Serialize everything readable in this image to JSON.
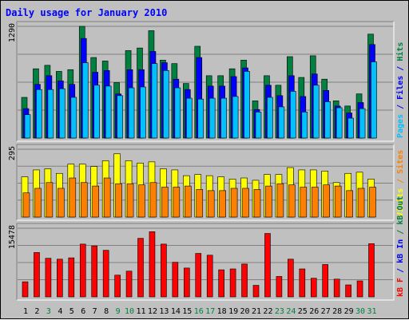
{
  "title": "Daily usage for January 2010",
  "colors": {
    "background": "#c0c0c0",
    "hits": "#008040",
    "files": "#0000ff",
    "pages": "#00c0ff",
    "visits": "#ffff00",
    "sites": "#ff8000",
    "kb_in": "#ff0000",
    "title_text": "#0000ff",
    "weekend_day": "#008040",
    "weekday_day": "#000000"
  },
  "chart_data": [
    {
      "type": "bar",
      "x": [
        "1",
        "2",
        "3",
        "4",
        "5",
        "6",
        "7",
        "8",
        "9",
        "10",
        "11",
        "12",
        "13",
        "14",
        "15",
        "16",
        "17",
        "18",
        "19",
        "20",
        "21",
        "22",
        "23",
        "24",
        "25",
        "26",
        "27",
        "28",
        "29",
        "30",
        "31"
      ],
      "weekend_days": [
        "3",
        "9",
        "10",
        "16",
        "17",
        "23",
        "24",
        "30",
        "31"
      ],
      "ylim": [
        0,
        1290
      ],
      "max_label": "1290",
      "right_label": [
        {
          "text": "Pages",
          "color": "#00c0ff"
        },
        {
          "text": " / ",
          "color": "#0000ff"
        },
        {
          "text": "Files",
          "color": "#0000ff"
        },
        {
          "text": " / ",
          "color": "#0000ff"
        },
        {
          "text": "Hits",
          "color": "#008040"
        }
      ],
      "series": [
        {
          "name": "Hits",
          "values": [
            470,
            800,
            840,
            770,
            790,
            1290,
            930,
            890,
            640,
            1010,
            1040,
            1240,
            900,
            860,
            630,
            1060,
            720,
            720,
            800,
            900,
            430,
            720,
            610,
            940,
            700,
            950,
            680,
            430,
            370,
            510,
            1200
          ]
        },
        {
          "name": "Files",
          "values": [
            340,
            620,
            720,
            660,
            620,
            1150,
            760,
            780,
            510,
            790,
            790,
            1000,
            870,
            680,
            560,
            930,
            600,
            600,
            710,
            810,
            330,
            610,
            490,
            720,
            480,
            740,
            550,
            370,
            290,
            410,
            1080
          ]
        },
        {
          "name": "Pages",
          "values": [
            270,
            560,
            560,
            570,
            470,
            870,
            610,
            600,
            490,
            580,
            590,
            860,
            780,
            580,
            460,
            450,
            460,
            460,
            480,
            770,
            300,
            470,
            360,
            540,
            300,
            610,
            420,
            350,
            230,
            340,
            880
          ]
        }
      ]
    },
    {
      "type": "bar",
      "x": [
        "1",
        "2",
        "3",
        "4",
        "5",
        "6",
        "7",
        "8",
        "9",
        "10",
        "11",
        "12",
        "13",
        "14",
        "15",
        "16",
        "17",
        "18",
        "19",
        "20",
        "21",
        "22",
        "23",
        "24",
        "25",
        "26",
        "27",
        "28",
        "29",
        "30",
        "31"
      ],
      "ylim": [
        0,
        295
      ],
      "max_label": "295",
      "right_label": [
        {
          "text": "Visits",
          "color": "#ffff00"
        },
        {
          "text": " / ",
          "color": "#ff8000"
        },
        {
          "text": "Sites",
          "color": "#ff8000"
        }
      ],
      "series": [
        {
          "name": "Visits",
          "values": [
            175,
            205,
            210,
            190,
            230,
            230,
            220,
            245,
            275,
            245,
            235,
            240,
            210,
            205,
            180,
            185,
            180,
            175,
            165,
            170,
            160,
            185,
            185,
            215,
            205,
            205,
            200,
            150,
            190,
            195,
            165
          ]
        },
        {
          "name": "Sites",
          "values": [
            105,
            125,
            150,
            125,
            170,
            150,
            135,
            170,
            145,
            145,
            140,
            150,
            130,
            130,
            135,
            120,
            115,
            115,
            125,
            125,
            120,
            135,
            145,
            140,
            130,
            130,
            140,
            135,
            115,
            125,
            130
          ]
        }
      ]
    },
    {
      "type": "bar",
      "x": [
        "1",
        "2",
        "3",
        "4",
        "5",
        "6",
        "7",
        "8",
        "9",
        "10",
        "11",
        "12",
        "13",
        "14",
        "15",
        "16",
        "17",
        "18",
        "19",
        "20",
        "21",
        "22",
        "23",
        "24",
        "25",
        "26",
        "27",
        "28",
        "29",
        "30",
        "31"
      ],
      "ylim": [
        0,
        15478
      ],
      "max_label": "15478",
      "right_label": [
        {
          "text": "kB F",
          "color": "#ff0000"
        },
        {
          "text": " / ",
          "color": "#0000ff"
        },
        {
          "text": "kB In",
          "color": "#0000ff"
        },
        {
          "text": " / ",
          "color": "#008040"
        },
        {
          "text": "kB Out",
          "color": "#008040"
        }
      ],
      "series": [
        {
          "name": "kB F",
          "values": [
            3400,
            10000,
            8700,
            8500,
            8800,
            11900,
            11500,
            10500,
            4900,
            5800,
            13200,
            14700,
            11900,
            7800,
            6500,
            9800,
            9400,
            6100,
            6300,
            7400,
            2600,
            14300,
            4600,
            8500,
            6300,
            4200,
            7300,
            4000,
            2700,
            3600,
            12000
          ]
        }
      ]
    }
  ]
}
